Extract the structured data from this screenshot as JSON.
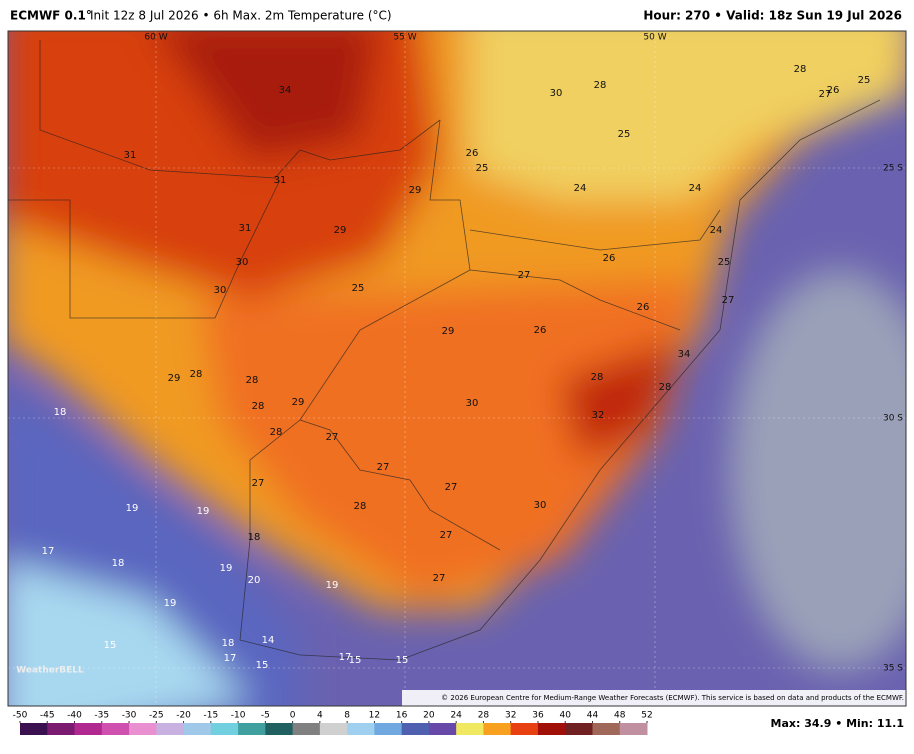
{
  "header": {
    "model": "ECMWF 0.1°",
    "title": "Init 12z 8 Jul 2026 • 6h Max. 2m Temperature (°C)",
    "valid": "Hour: 270 • Valid: 18z Sun 19 Jul 2026"
  },
  "grid_labels": [
    "60 W",
    "55 W",
    "50 W",
    "25 S",
    "30 S",
    "35 S"
  ],
  "map_labels": [
    "34",
    "31",
    "31",
    "31",
    "30",
    "30",
    "29",
    "26",
    "25",
    "30",
    "28",
    "25",
    "24",
    "24",
    "28",
    "25",
    "27",
    "26",
    "29",
    "25",
    "27",
    "26",
    "24",
    "25",
    "26",
    "27",
    "29",
    "26",
    "34",
    "28",
    "28",
    "28",
    "29",
    "28",
    "28",
    "29",
    "30",
    "32",
    "18",
    "28",
    "27",
    "27",
    "27",
    "27",
    "28",
    "30",
    "19",
    "19",
    "27",
    "18",
    "17",
    "18",
    "19",
    "20",
    "19",
    "27",
    "19",
    "15",
    "18",
    "14",
    "17",
    "17",
    "15",
    "15",
    "15"
  ],
  "logo": "WeatherBELL",
  "copyright": "© 2026 European Centre for Medium-Range Weather Forecasts (ECMWF). This service is based on data and products of the ECMWF.",
  "colorbar": {
    "ticks": [
      -50,
      -45,
      -40,
      -35,
      -30,
      -25,
      -20,
      -15,
      -10,
      -5,
      0,
      4,
      8,
      12,
      16,
      20,
      24,
      28,
      32,
      36,
      40,
      44,
      48,
      52
    ],
    "colors": [
      "#3a1050",
      "#7a1a70",
      "#b02890",
      "#d050b0",
      "#e890d0",
      "#c8b0e0",
      "#a0c8e8",
      "#70d0e0",
      "#40a0a0",
      "#206060",
      "#808080",
      "#d0d0d0",
      "#a0d0f0",
      "#70a8e0",
      "#5060b0",
      "#6848a8",
      "#f0e860",
      "#f8a020",
      "#e84010",
      "#a01008",
      "#702020",
      "#a06858",
      "#c090a0"
    ]
  },
  "stats": "Max: 34.9 • Min: 11.1"
}
